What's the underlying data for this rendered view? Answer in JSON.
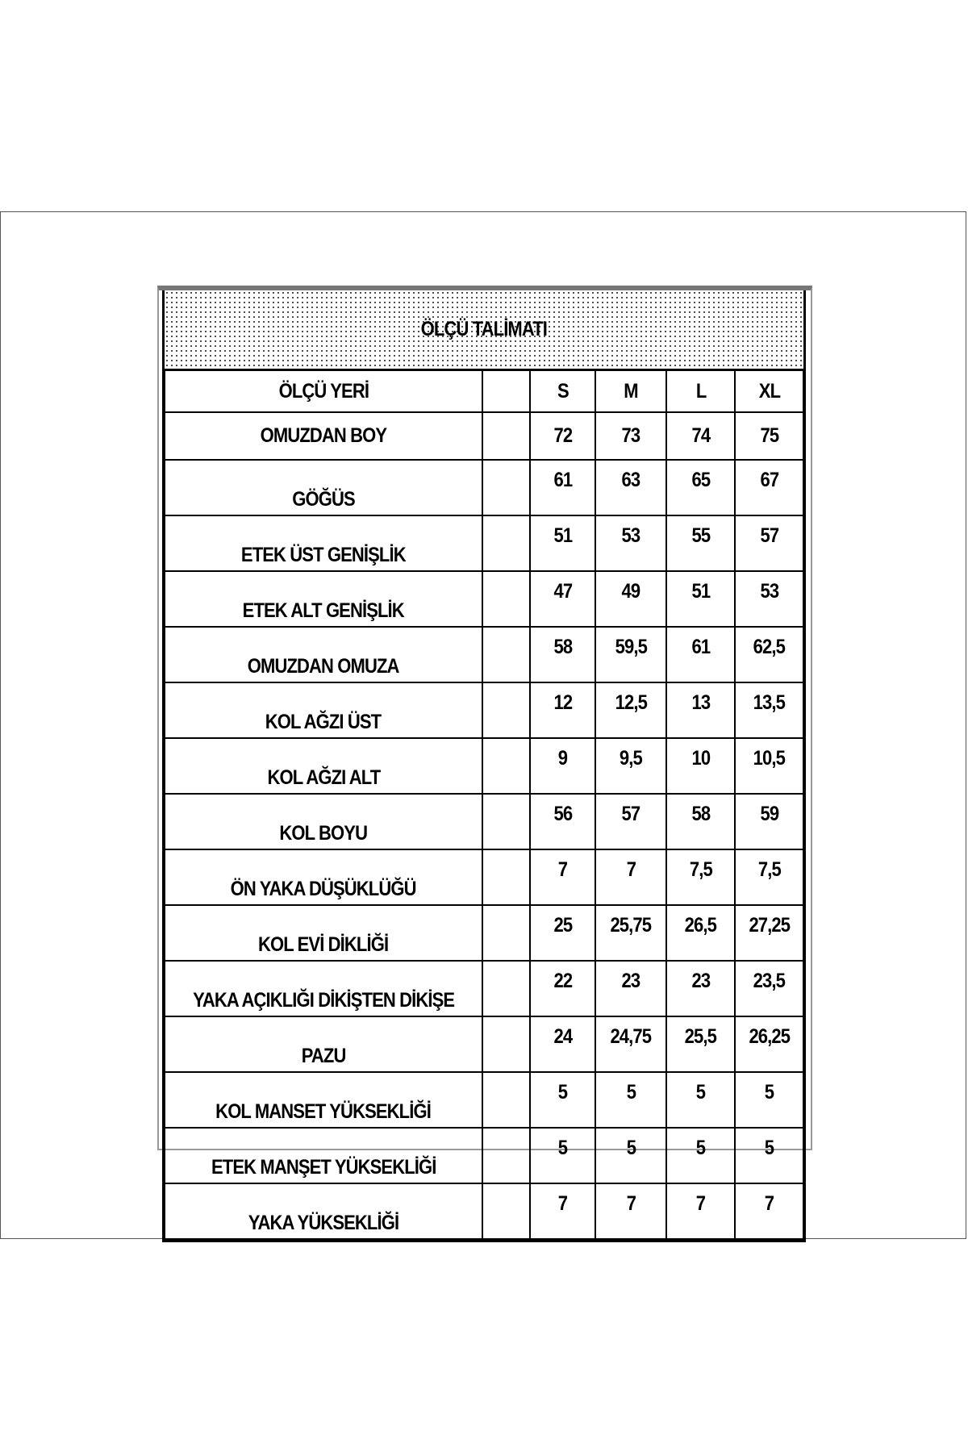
{
  "title": "ÖLÇÜ TALİMATI",
  "header": {
    "label": "ÖLÇÜ YERİ",
    "sizes": [
      "S",
      "M",
      "L",
      "XL"
    ]
  },
  "rows": [
    {
      "label": "OMUZDAN BOY",
      "values": [
        "72",
        "73",
        "74",
        "75"
      ]
    },
    {
      "label": "GÖĞÜS",
      "values": [
        "61",
        "63",
        "65",
        "67"
      ]
    },
    {
      "label": "ETEK ÜST GENİŞLİK",
      "values": [
        "51",
        "53",
        "55",
        "57"
      ]
    },
    {
      "label": "ETEK ALT GENİŞLİK",
      "values": [
        "47",
        "49",
        "51",
        "53"
      ]
    },
    {
      "label": "OMUZDAN OMUZA",
      "values": [
        "58",
        "59,5",
        "61",
        "62,5"
      ]
    },
    {
      "label": "KOL AĞZI ÜST",
      "values": [
        "12",
        "12,5",
        "13",
        "13,5"
      ]
    },
    {
      "label": "KOL AĞZI ALT",
      "values": [
        "9",
        "9,5",
        "10",
        "10,5"
      ]
    },
    {
      "label": "KOL BOYU",
      "values": [
        "56",
        "57",
        "58",
        "59"
      ]
    },
    {
      "label": "ÖN YAKA DÜŞÜKLÜĞÜ",
      "values": [
        "7",
        "7",
        "7,5",
        "7,5"
      ]
    },
    {
      "label": "KOL EVİ DİKLİĞİ",
      "values": [
        "25",
        "25,75",
        "26,5",
        "27,25"
      ]
    },
    {
      "label": "YAKA AÇIKLIĞI DİKİŞTEN DİKİŞE",
      "values": [
        "22",
        "23",
        "23",
        "23,5"
      ]
    },
    {
      "label": "PAZU",
      "values": [
        "24",
        "24,75",
        "25,5",
        "26,25"
      ]
    },
    {
      "label": "KOL MANSET YÜKSEKLİĞİ",
      "values": [
        "5",
        "5",
        "5",
        "5"
      ]
    },
    {
      "label": "ETEK MANŞET YÜKSEKLİĞİ",
      "values": [
        "5",
        "5",
        "5",
        "5"
      ]
    },
    {
      "label": "YAKA YÜKSEKLİĞİ",
      "values": [
        "7",
        "7",
        "7",
        "7"
      ]
    }
  ]
}
